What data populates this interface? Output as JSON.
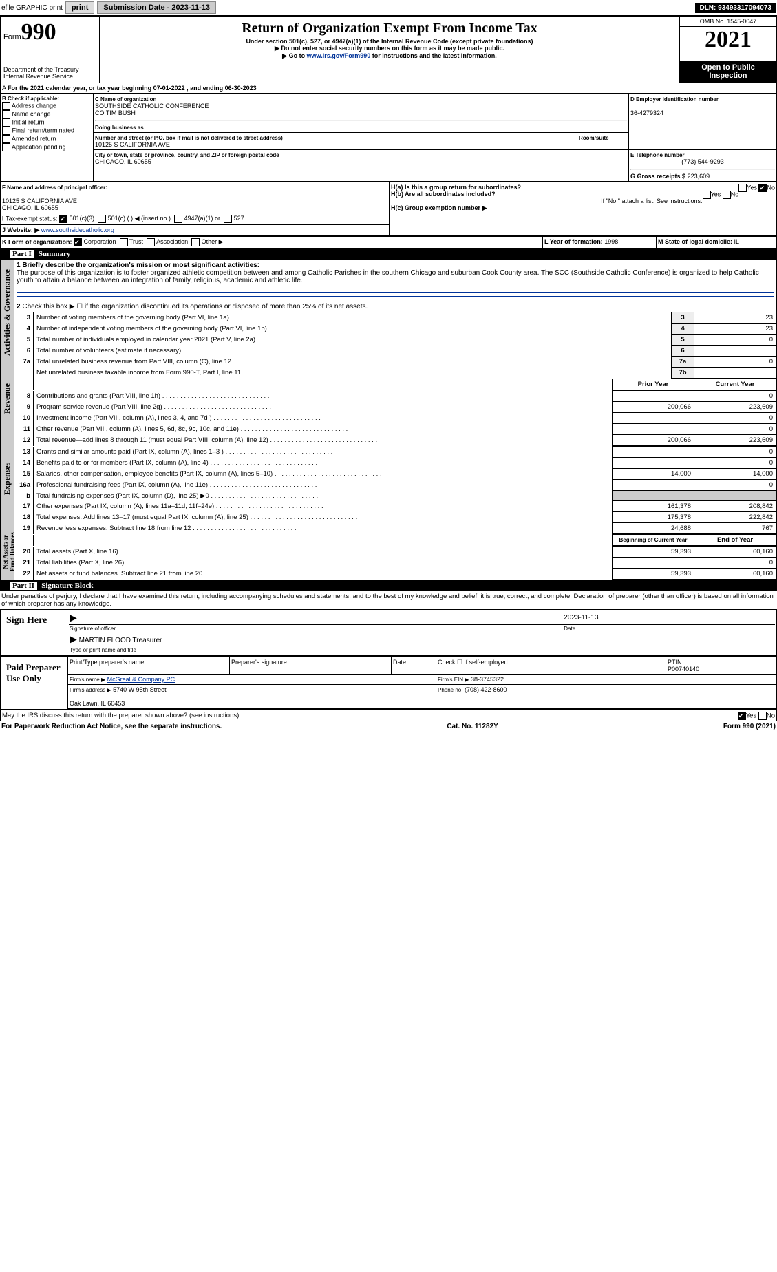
{
  "header": {
    "efile": "efile GRAPHIC print",
    "submission_label": "Submission Date - 2023-11-13",
    "dln": "DLN: 93493317094073"
  },
  "form_header": {
    "form_label": "Form",
    "form_number": "990",
    "title": "Return of Organization Exempt From Income Tax",
    "subtitle": "Under section 501(c), 527, or 4947(a)(1) of the Internal Revenue Code (except private foundations)",
    "note1": "▶ Do not enter social security numbers on this form as it may be made public.",
    "note2_pre": "▶ Go to ",
    "note2_link": "www.irs.gov/Form990",
    "note2_post": " for instructions and the latest information.",
    "dept": "Department of the Treasury\nInternal Revenue Service",
    "omb": "OMB No. 1545-0047",
    "year": "2021",
    "inspection": "Open to Public Inspection"
  },
  "line_a": "For the 2021 calendar year, or tax year beginning 07-01-2022    , and ending 06-30-2023",
  "box_b": {
    "label": "B Check if applicable:",
    "items": [
      "Address change",
      "Name change",
      "Initial return",
      "Final return/terminated",
      "Amended return",
      "Application pending"
    ]
  },
  "box_c": {
    "name_label": "C Name of organization",
    "name": "SOUTHSIDE CATHOLIC CONFERENCE\nCO TIM BUSH",
    "dba_label": "Doing business as",
    "addr_label": "Number and street (or P.O. box if mail is not delivered to street address)",
    "room_label": "Room/suite",
    "addr": "10125 S CALIFORNIA AVE",
    "city_label": "City or town, state or province, country, and ZIP or foreign postal code",
    "city": "CHICAGO, IL  60655"
  },
  "box_d": {
    "label": "D Employer identification number",
    "value": "36-4279324"
  },
  "box_e": {
    "label": "E Telephone number",
    "value": "(773) 544-9293"
  },
  "box_g": {
    "label": "G Gross receipts $",
    "value": "223,609"
  },
  "box_f": {
    "label": "F Name and address of principal officer:",
    "value": "10125 S CALIFORNIA AVE\nCHICAGO, IL  60655"
  },
  "box_h": {
    "a": "H(a)  Is this a group return for subordinates?",
    "b": "H(b)  Are all subordinates included?",
    "note": "If \"No,\" attach a list. See instructions.",
    "c": "H(c)  Group exemption number ▶",
    "yes": "Yes",
    "no": "No"
  },
  "tax_exempt": {
    "label": "Tax-exempt status:",
    "opts": [
      "501(c)(3)",
      "501(c) (  ) ◀ (insert no.)",
      "4947(a)(1) or",
      "527"
    ]
  },
  "website": {
    "label": "Website: ▶",
    "value": "www.southsidecatholic.org"
  },
  "box_k": "K Form of organization:",
  "k_opts": [
    "Corporation",
    "Trust",
    "Association",
    "Other ▶"
  ],
  "box_l": {
    "label": "L Year of formation:",
    "value": "1998"
  },
  "box_m": {
    "label": "M State of legal domicile:",
    "value": "IL"
  },
  "part1": {
    "title": "Part I",
    "name": "Summary",
    "mission_label": "1  Briefly describe the organization's mission or most significant activities:",
    "mission": "The purpose of this organization is to foster organized athletic competition between and among Catholic Parishes in the southern Chicago and suburban Cook County area. The SCC (Southside Catholic Conference) is organized to help Catholic youth to attain a balance between an integration of family, religious, academic and athletic life.",
    "line2": "Check this box ▶ ☐  if the organization discontinued its operations or disposed of more than 25% of its net assets.",
    "tabs": [
      "Activities & Governance",
      "Revenue",
      "Expenses",
      "Net Assets or Fund Balances"
    ]
  },
  "governance_rows": [
    {
      "n": "3",
      "d": "Number of voting members of the governing body (Part VI, line 1a)",
      "b": "3",
      "v": "23"
    },
    {
      "n": "4",
      "d": "Number of independent voting members of the governing body (Part VI, line 1b)",
      "b": "4",
      "v": "23"
    },
    {
      "n": "5",
      "d": "Total number of individuals employed in calendar year 2021 (Part V, line 2a)",
      "b": "5",
      "v": "0"
    },
    {
      "n": "6",
      "d": "Total number of volunteers (estimate if necessary)",
      "b": "6",
      "v": ""
    },
    {
      "n": "7a",
      "d": "Total unrelated business revenue from Part VIII, column (C), line 12",
      "b": "7a",
      "v": "0"
    },
    {
      "n": "",
      "d": "Net unrelated business taxable income from Form 990-T, Part I, line 11",
      "b": "7b",
      "v": ""
    }
  ],
  "col_headers": {
    "prior": "Prior Year",
    "current": "Current Year",
    "boy": "Beginning of Current Year",
    "eoy": "End of Year"
  },
  "revenue_rows": [
    {
      "n": "8",
      "d": "Contributions and grants (Part VIII, line 1h)",
      "p": "",
      "c": "0"
    },
    {
      "n": "9",
      "d": "Program service revenue (Part VIII, line 2g)",
      "p": "200,066",
      "c": "223,609"
    },
    {
      "n": "10",
      "d": "Investment income (Part VIII, column (A), lines 3, 4, and 7d )",
      "p": "",
      "c": "0"
    },
    {
      "n": "11",
      "d": "Other revenue (Part VIII, column (A), lines 5, 6d, 8c, 9c, 10c, and 11e)",
      "p": "",
      "c": "0"
    },
    {
      "n": "12",
      "d": "Total revenue—add lines 8 through 11 (must equal Part VIII, column (A), line 12)",
      "p": "200,066",
      "c": "223,609"
    }
  ],
  "expense_rows": [
    {
      "n": "13",
      "d": "Grants and similar amounts paid (Part IX, column (A), lines 1–3 )",
      "p": "",
      "c": "0"
    },
    {
      "n": "14",
      "d": "Benefits paid to or for members (Part IX, column (A), line 4)",
      "p": "",
      "c": "0"
    },
    {
      "n": "15",
      "d": "Salaries, other compensation, employee benefits (Part IX, column (A), lines 5–10)",
      "p": "14,000",
      "c": "14,000"
    },
    {
      "n": "16a",
      "d": "Professional fundraising fees (Part IX, column (A), line 11e)",
      "p": "",
      "c": "0"
    },
    {
      "n": "b",
      "d": "Total fundraising expenses (Part IX, column (D), line 25) ▶0",
      "p": "SHADE",
      "c": "SHADE"
    },
    {
      "n": "17",
      "d": "Other expenses (Part IX, column (A), lines 11a–11d, 11f–24e)",
      "p": "161,378",
      "c": "208,842"
    },
    {
      "n": "18",
      "d": "Total expenses. Add lines 13–17 (must equal Part IX, column (A), line 25)",
      "p": "175,378",
      "c": "222,842"
    },
    {
      "n": "19",
      "d": "Revenue less expenses. Subtract line 18 from line 12",
      "p": "24,688",
      "c": "767"
    }
  ],
  "asset_rows": [
    {
      "n": "20",
      "d": "Total assets (Part X, line 16)",
      "p": "59,393",
      "c": "60,160"
    },
    {
      "n": "21",
      "d": "Total liabilities (Part X, line 26)",
      "p": "",
      "c": "0"
    },
    {
      "n": "22",
      "d": "Net assets or fund balances. Subtract line 21 from line 20",
      "p": "59,393",
      "c": "60,160"
    }
  ],
  "part2": {
    "title": "Part II",
    "name": "Signature Block",
    "declaration": "Under penalties of perjury, I declare that I have examined this return, including accompanying schedules and statements, and to the best of my knowledge and belief, it is true, correct, and complete. Declaration of preparer (other than officer) is based on all information of which preparer has any knowledge."
  },
  "sign": {
    "here": "Sign Here",
    "sig_officer": "Signature of officer",
    "date": "Date",
    "date_val": "2023-11-13",
    "name": "MARTIN FLOOD Treasurer",
    "name_label": "Type or print name and title"
  },
  "preparer": {
    "label": "Paid Preparer Use Only",
    "cols": [
      "Print/Type preparer's name",
      "Preparer's signature",
      "Date"
    ],
    "check": "Check ☐ if self-employed",
    "ptin_label": "PTIN",
    "ptin": "P00740140",
    "firm_name_label": "Firm's name    ▶",
    "firm_name": "McGreal & Company PC",
    "firm_ein_label": "Firm's EIN ▶",
    "firm_ein": "38-3745322",
    "firm_addr_label": "Firm's address ▶",
    "firm_addr": "5740 W 95th Street\n\nOak Lawn, IL  60453",
    "phone_label": "Phone no.",
    "phone": "(708) 422-8600"
  },
  "discuss": "May the IRS discuss this return with the preparer shown above? (see instructions)",
  "footer": {
    "pra": "For Paperwork Reduction Act Notice, see the separate instructions.",
    "cat": "Cat. No. 11282Y",
    "form": "Form 990 (2021)"
  }
}
